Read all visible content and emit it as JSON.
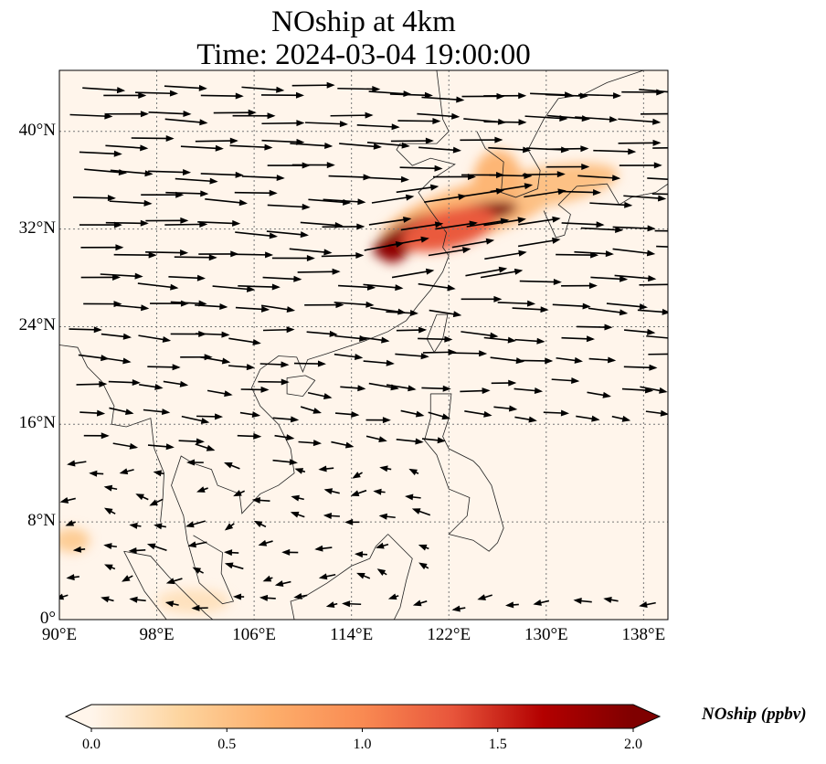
{
  "title_line1": "NOship at 4km",
  "title_line2": "Time: 2024-03-04 19:00:00",
  "map": {
    "lon_range": [
      90,
      140
    ],
    "lat_range": [
      0,
      45
    ],
    "lon_ticks": [
      {
        "v": 90,
        "label": "90°E"
      },
      {
        "v": 98,
        "label": "98°E"
      },
      {
        "v": 106,
        "label": "106°E"
      },
      {
        "v": 114,
        "label": "114°E"
      },
      {
        "v": 122,
        "label": "122°E"
      },
      {
        "v": 130,
        "label": "130°E"
      },
      {
        "v": 138,
        "label": "138°E"
      }
    ],
    "lat_ticks": [
      {
        "v": 0,
        "label": "0°"
      },
      {
        "v": 8,
        "label": "8°N"
      },
      {
        "v": 16,
        "label": "16°N"
      },
      {
        "v": 24,
        "label": "24°N"
      },
      {
        "v": 32,
        "label": "32°N"
      },
      {
        "v": 40,
        "label": "40°N"
      }
    ],
    "background_color": "#fff5eb",
    "plume": [
      {
        "lon": 124,
        "lat": 33.5,
        "rlon": 8,
        "rlat": 2.2,
        "rot": -18,
        "value": 0.6
      },
      {
        "lon": 130,
        "lat": 35.5,
        "rlon": 6,
        "rlat": 1.6,
        "rot": -10,
        "value": 0.5
      },
      {
        "lon": 126,
        "lat": 36,
        "rlon": 2,
        "rlat": 2.5,
        "rot": 0,
        "value": 0.6
      },
      {
        "lon": 119,
        "lat": 31.5,
        "rlon": 3.5,
        "rlat": 1.2,
        "rot": -25,
        "value": 2.0
      },
      {
        "lon": 124.5,
        "lat": 33.3,
        "rlon": 3.2,
        "rlat": 0.8,
        "rot": -10,
        "value": 2.0
      },
      {
        "lon": 117.5,
        "lat": 30.3,
        "rlon": 1.2,
        "rlat": 1.0,
        "rot": -30,
        "value": 1.9
      },
      {
        "lon": 122,
        "lat": 32,
        "rlon": 4,
        "rlat": 1.6,
        "rot": -15,
        "value": 1.3
      },
      {
        "lon": 91,
        "lat": 6.5,
        "rlon": 1.5,
        "rlat": 1,
        "rot": 0,
        "value": 0.4
      },
      {
        "lon": 101,
        "lat": 1.5,
        "rlon": 3,
        "rlat": 1,
        "rot": 0,
        "value": 0.2
      }
    ]
  },
  "colorbar": {
    "label": "NOship (ppbv)",
    "min": 0.0,
    "max": 2.0,
    "ticks": [
      "0.0",
      "0.5",
      "1.0",
      "1.5",
      "2.0"
    ],
    "colors": [
      "#fff5eb",
      "#fdd49e",
      "#fdae6b",
      "#f98a52",
      "#e8553b",
      "#b30000",
      "#7f0000"
    ]
  }
}
